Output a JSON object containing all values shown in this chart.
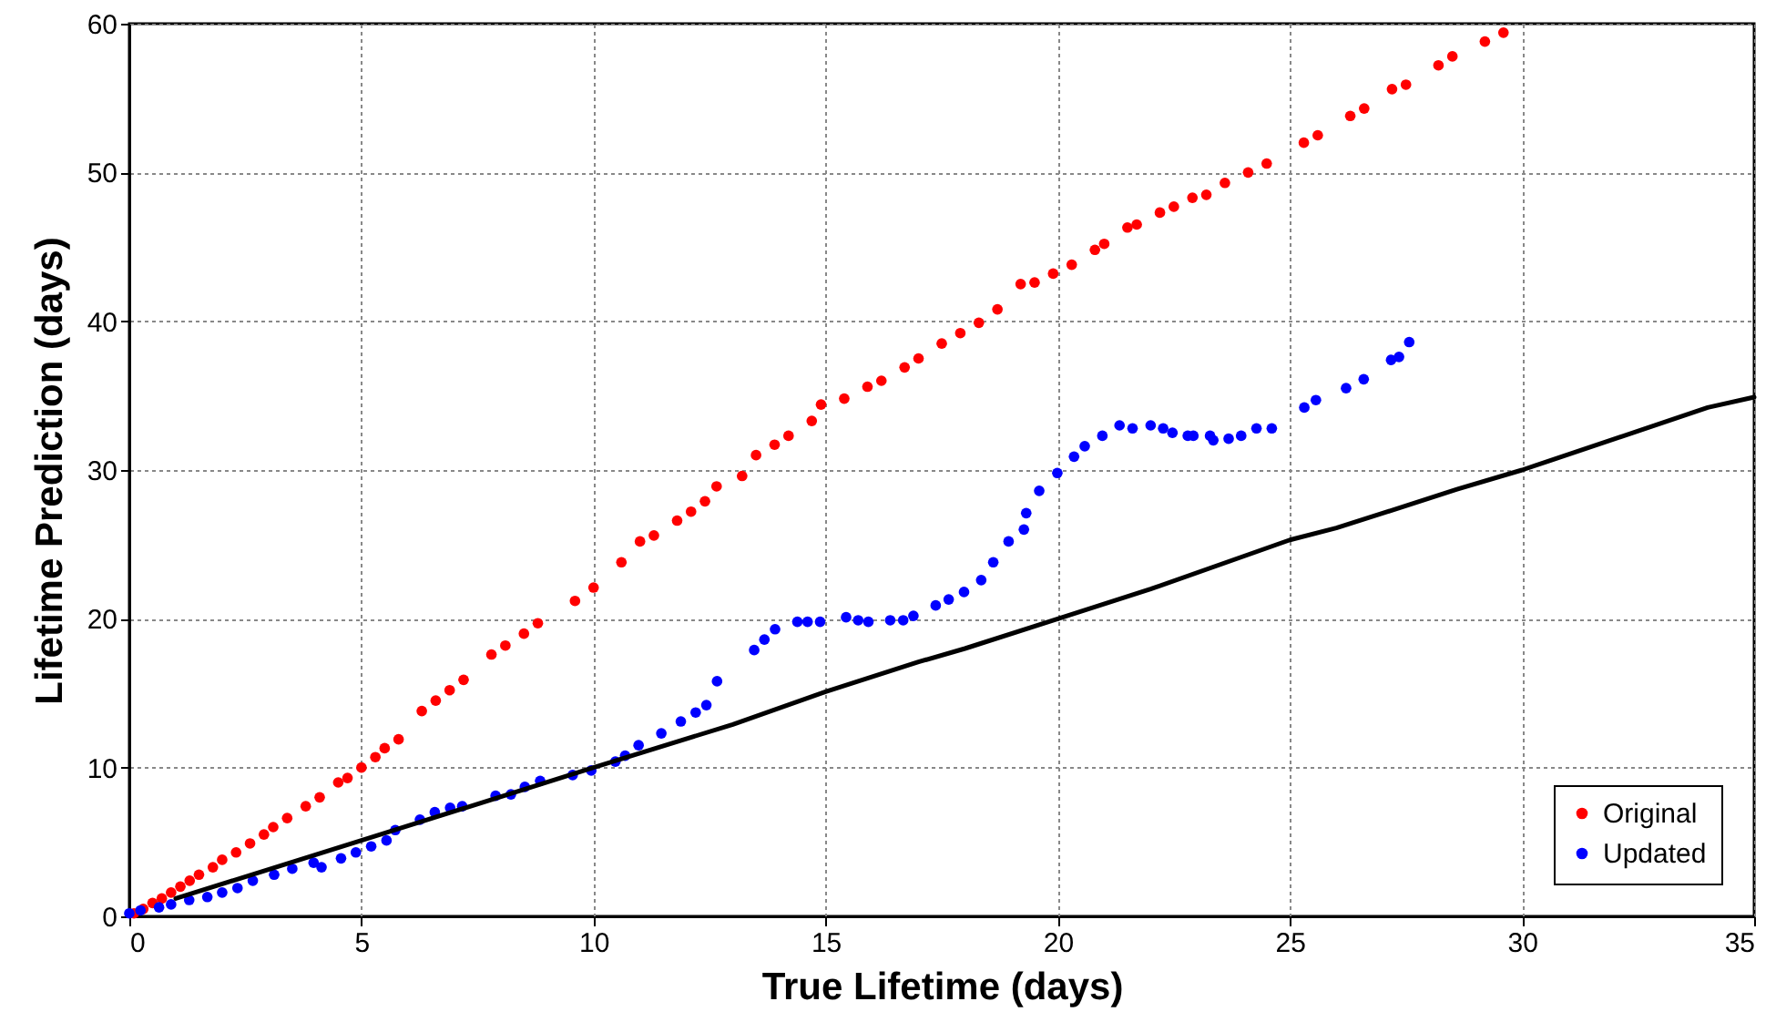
{
  "chart_data": {
    "type": "scatter",
    "xlabel": "True Lifetime (days)",
    "ylabel": "Lifetime Prediction (days)",
    "xlim": [
      0,
      35
    ],
    "ylim": [
      0,
      60
    ],
    "xticks": [
      0,
      5,
      10,
      15,
      20,
      25,
      30,
      35
    ],
    "yticks": [
      0,
      10,
      20,
      30,
      40,
      50,
      60
    ],
    "grid": true,
    "legend": "bottom right",
    "marker": "circle",
    "series": [
      {
        "name": "Original",
        "color": "#ff0000",
        "x": [
          0.1,
          0.3,
          0.5,
          0.7,
          0.9,
          1.1,
          1.3,
          1.5,
          1.8,
          2.0,
          2.3,
          2.6,
          2.9,
          3.1,
          3.4,
          3.8,
          4.1,
          4.5,
          4.7,
          5.0,
          5.3,
          5.5,
          5.8,
          6.3,
          6.6,
          6.9,
          7.2,
          7.8,
          8.1,
          8.5,
          8.8,
          9.6,
          10.0,
          10.6,
          11.0,
          11.3,
          11.8,
          12.1,
          12.4,
          12.65,
          13.2,
          13.5,
          13.9,
          14.2,
          14.7,
          14.9,
          15.4,
          15.9,
          16.2,
          16.7,
          17.0,
          17.5,
          17.9,
          18.3,
          18.7,
          19.2,
          19.5,
          19.9,
          20.3,
          20.8,
          21.0,
          21.5,
          21.7,
          22.2,
          22.5,
          22.9,
          23.2,
          23.6,
          24.1,
          24.5,
          25.3,
          25.6,
          26.3,
          26.6,
          27.2,
          27.5,
          28.2,
          28.5,
          29.2,
          29.6
        ],
        "values": [
          0.2,
          0.5,
          0.9,
          1.2,
          1.6,
          2.0,
          2.4,
          2.8,
          3.3,
          3.8,
          4.3,
          4.9,
          5.5,
          6.0,
          6.6,
          7.4,
          8.0,
          9.0,
          9.3,
          10.0,
          10.7,
          11.3,
          11.9,
          13.8,
          14.5,
          15.2,
          15.9,
          17.6,
          18.2,
          19.0,
          19.7,
          21.2,
          22.1,
          23.8,
          25.2,
          25.6,
          26.6,
          27.2,
          27.9,
          28.9,
          29.6,
          31.0,
          31.7,
          32.3,
          33.3,
          34.4,
          34.8,
          35.6,
          36.0,
          36.9,
          37.5,
          38.5,
          39.2,
          39.9,
          40.8,
          42.5,
          42.6,
          43.2,
          43.8,
          44.8,
          45.2,
          46.3,
          46.5,
          47.3,
          47.7,
          48.3,
          48.5,
          49.3,
          50.0,
          50.6,
          52.0,
          52.5,
          53.8,
          54.3,
          55.6,
          55.9,
          57.2,
          57.8,
          58.8,
          59.4
        ]
      },
      {
        "name": "Updated",
        "color": "#0000ff",
        "x": [
          0.0,
          0.24,
          0.64,
          0.9,
          1.29,
          1.68,
          2.0,
          2.33,
          2.66,
          3.12,
          3.51,
          3.97,
          4.14,
          4.56,
          4.88,
          5.21,
          5.54,
          5.73,
          6.26,
          6.58,
          6.91,
          7.17,
          7.89,
          8.22,
          8.52,
          8.85,
          9.55,
          9.95,
          10.47,
          10.68,
          10.97,
          11.46,
          11.88,
          12.2,
          12.43,
          12.66,
          13.46,
          13.68,
          13.91,
          14.39,
          14.61,
          14.88,
          15.44,
          15.7,
          15.92,
          16.39,
          16.67,
          16.89,
          17.37,
          17.65,
          17.98,
          18.35,
          18.61,
          18.94,
          19.27,
          19.32,
          19.6,
          19.99,
          20.35,
          20.58,
          20.96,
          21.33,
          21.61,
          22.0,
          22.27,
          22.47,
          22.8,
          22.92,
          23.28,
          23.35,
          23.68,
          23.95,
          24.28,
          24.61,
          25.31,
          25.56,
          26.21,
          26.59,
          27.18,
          27.35,
          27.57
        ],
        "values": [
          0.2,
          0.4,
          0.6,
          0.8,
          1.1,
          1.3,
          1.6,
          1.9,
          2.4,
          2.8,
          3.2,
          3.6,
          3.3,
          3.9,
          4.3,
          4.7,
          5.1,
          5.8,
          6.5,
          7.0,
          7.3,
          7.4,
          8.1,
          8.2,
          8.7,
          9.1,
          9.5,
          9.8,
          10.4,
          10.8,
          11.5,
          12.3,
          13.1,
          13.7,
          14.2,
          15.8,
          17.9,
          18.6,
          19.3,
          19.8,
          19.8,
          19.8,
          20.1,
          19.9,
          19.8,
          19.9,
          19.9,
          20.2,
          20.9,
          21.3,
          21.8,
          22.6,
          23.8,
          25.2,
          26.0,
          27.1,
          28.6,
          29.8,
          30.9,
          31.6,
          32.3,
          33.0,
          32.8,
          33.0,
          32.8,
          32.5,
          32.3,
          32.3,
          32.3,
          32.0,
          32.1,
          32.3,
          32.8,
          32.8,
          34.2,
          34.7,
          35.5,
          36.1,
          37.4,
          37.6,
          38.6
        ]
      },
      {
        "type": "line",
        "marker": "none",
        "color": "#000000",
        "x": [
          1,
          5,
          10,
          13,
          15,
          17,
          18,
          20,
          22,
          25,
          26,
          28.6,
          30,
          34,
          35
        ],
        "values": [
          1.2,
          5.1,
          10,
          12.9,
          15.1,
          17.1,
          18,
          20,
          22,
          25.3,
          26.1,
          28.7,
          30,
          34.2,
          34.9
        ]
      }
    ]
  }
}
